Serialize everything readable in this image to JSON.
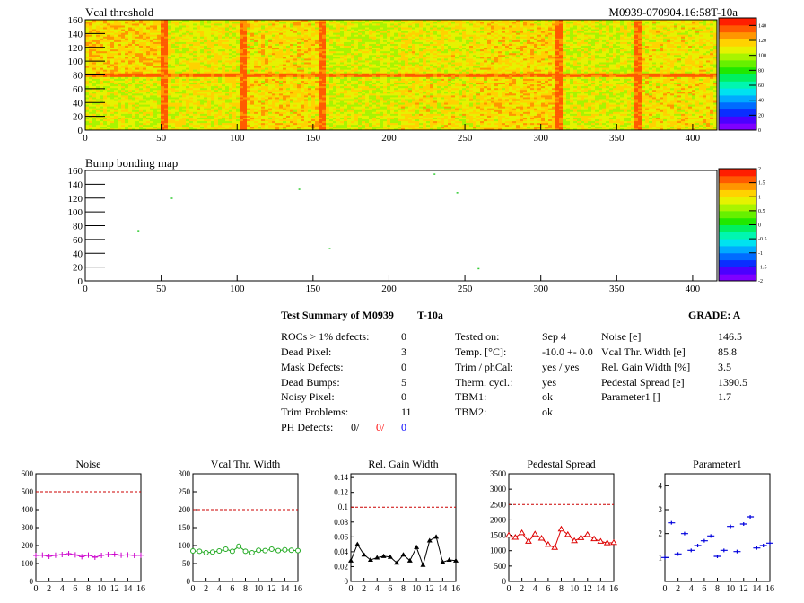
{
  "header": {
    "title": "Vcal threshold",
    "module_id": "M0939-070904.16:58T-10a"
  },
  "colors": {
    "palette": [
      "#7f00ff",
      "#4b00ff",
      "#0a2eff",
      "#006cff",
      "#00aaff",
      "#00e2f0",
      "#00f6b0",
      "#00f060",
      "#20e800",
      "#66f000",
      "#a8f400",
      "#e6f200",
      "#ffd200",
      "#ff9600",
      "#ff5a00",
      "#ff1e00"
    ],
    "noise": "#cc00cc",
    "vcal": "#22aa22",
    "gain": "#000000",
    "pedestal": "#dd0000",
    "parameter": "#0000dd",
    "reference_line": "#cc0000",
    "ph_red": "#ff0000",
    "ph_blue": "#0000ff"
  },
  "chart_data": [
    {
      "type": "heatmap",
      "title": "Vcal threshold",
      "x_ticks": [
        "0",
        "50",
        "100",
        "150",
        "200",
        "250",
        "300",
        "350",
        "400"
      ],
      "y_ticks": [
        "0",
        "20",
        "40",
        "60",
        "80",
        "100",
        "120",
        "140",
        "160"
      ],
      "xlim": [
        0,
        416
      ],
      "ylim": [
        0,
        160
      ],
      "colorbar_ticks": [
        "0",
        "20",
        "40",
        "60",
        "80",
        "100",
        "120",
        "140"
      ],
      "colorbar_range": [
        0,
        150
      ],
      "typical_value": 110,
      "high_columns": [
        52,
        104,
        156,
        312,
        364
      ],
      "high_row": 80
    },
    {
      "type": "scatter",
      "title": "Bump bonding map",
      "x_ticks": [
        "0",
        "50",
        "100",
        "150",
        "200",
        "250",
        "300",
        "350",
        "400"
      ],
      "y_ticks": [
        "0",
        "20",
        "40",
        "60",
        "80",
        "100",
        "120",
        "140",
        "160"
      ],
      "xlim": [
        0,
        416
      ],
      "ylim": [
        0,
        160
      ],
      "colorbar_ticks": [
        "2",
        "1.5",
        "1",
        "0.5",
        "0",
        "-0.5",
        "-1",
        "-1.5",
        "-2"
      ],
      "colorbar_range": [
        -2,
        2
      ],
      "points": [
        [
          35,
          73
        ],
        [
          57,
          120
        ],
        [
          141,
          133
        ],
        [
          161,
          47
        ],
        [
          230,
          155
        ],
        [
          245,
          128
        ],
        [
          259,
          18
        ]
      ]
    },
    {
      "type": "line",
      "title": "Noise",
      "x": [
        0,
        1,
        2,
        3,
        4,
        5,
        6,
        7,
        8,
        9,
        10,
        11,
        12,
        13,
        14,
        15,
        16
      ],
      "x_ticks": [
        "0",
        "2",
        "4",
        "6",
        "8",
        "10",
        "12",
        "14",
        "16"
      ],
      "y_ticks": [
        "0",
        "100",
        "200",
        "300",
        "400",
        "500",
        "600"
      ],
      "xlim": [
        0,
        16
      ],
      "ylim": [
        0,
        600
      ],
      "reference": 500,
      "marker": "plus",
      "values": [
        145,
        147,
        140,
        146,
        150,
        155,
        148,
        138,
        147,
        135,
        145,
        150,
        152,
        146,
        148,
        145,
        146
      ]
    },
    {
      "type": "line",
      "title": "Vcal Thr. Width",
      "x": [
        0,
        1,
        2,
        3,
        4,
        5,
        6,
        7,
        8,
        9,
        10,
        11,
        12,
        13,
        14,
        15,
        16
      ],
      "x_ticks": [
        "0",
        "2",
        "4",
        "6",
        "8",
        "10",
        "12",
        "14",
        "16"
      ],
      "y_ticks": [
        "0",
        "50",
        "100",
        "150",
        "200",
        "250",
        "300"
      ],
      "xlim": [
        0,
        16
      ],
      "ylim": [
        0,
        300
      ],
      "reference": 200,
      "marker": "circle",
      "values": [
        85,
        84,
        80,
        82,
        85,
        90,
        84,
        98,
        84,
        80,
        87,
        86,
        90,
        86,
        88,
        87,
        86
      ]
    },
    {
      "type": "line",
      "title": "Rel. Gain Width",
      "x": [
        0,
        1,
        2,
        3,
        4,
        5,
        6,
        7,
        8,
        9,
        10,
        11,
        12,
        13,
        14,
        15,
        16
      ],
      "x_ticks": [
        "0",
        "2",
        "4",
        "6",
        "8",
        "10",
        "12",
        "14",
        "16"
      ],
      "y_ticks": [
        "0",
        "0.02",
        "0.04",
        "0.06",
        "0.08",
        "0.1",
        "0.12",
        "0.14"
      ],
      "xlim": [
        0,
        16
      ],
      "ylim": [
        0,
        0.145
      ],
      "reference": 0.1,
      "marker": "triangle",
      "values": [
        0.028,
        0.05,
        0.036,
        0.029,
        0.032,
        0.034,
        0.033,
        0.025,
        0.036,
        0.028,
        0.046,
        0.022,
        0.055,
        0.06,
        0.026,
        0.029,
        0.028
      ]
    },
    {
      "type": "line",
      "title": "Pedestal Spread",
      "x": [
        0,
        1,
        2,
        3,
        4,
        5,
        6,
        7,
        8,
        9,
        10,
        11,
        12,
        13,
        14,
        15,
        16
      ],
      "x_ticks": [
        "0",
        "2",
        "4",
        "6",
        "8",
        "10",
        "12",
        "14",
        "16"
      ],
      "y_ticks": [
        "0",
        "500",
        "1000",
        "1500",
        "2000",
        "2500",
        "3000",
        "3500"
      ],
      "xlim": [
        0,
        16
      ],
      "ylim": [
        0,
        3500
      ],
      "reference": 2500,
      "marker": "triangle-open",
      "values": [
        1500,
        1430,
        1580,
        1300,
        1540,
        1400,
        1200,
        1100,
        1700,
        1520,
        1320,
        1420,
        1520,
        1380,
        1300,
        1250,
        1260
      ]
    },
    {
      "type": "scatter",
      "title": "Parameter1",
      "x": [
        0,
        1,
        2,
        3,
        4,
        5,
        6,
        7,
        8,
        9,
        10,
        11,
        12,
        13,
        14,
        15,
        16
      ],
      "x_ticks": [
        "0",
        "2",
        "4",
        "6",
        "8",
        "10",
        "12",
        "14",
        "16"
      ],
      "y_ticks": [
        "1",
        "2",
        "3",
        "4"
      ],
      "xlim": [
        0,
        16
      ],
      "ylim": [
        0,
        4.5
      ],
      "marker": "cross",
      "values": [
        1.0,
        2.45,
        1.15,
        2.0,
        1.3,
        1.5,
        1.7,
        1.9,
        1.05,
        1.3,
        2.3,
        1.25,
        2.4,
        2.7,
        1.4,
        1.5,
        1.6
      ]
    }
  ],
  "summary": {
    "title": "Test Summary of M0939",
    "temp_label": "T-10a",
    "grade": "GRADE:  A",
    "defects": [
      {
        "label": "ROCs > 1% defects:",
        "value": "0"
      },
      {
        "label": "Dead Pixel:",
        "value": "3"
      },
      {
        "label": "Mask Defects:",
        "value": "0"
      },
      {
        "label": "Dead Bumps:",
        "value": "5"
      },
      {
        "label": "Noisy Pixel:",
        "value": "0"
      },
      {
        "label": "Trim Problems:",
        "value": "11"
      }
    ],
    "ph_label": "PH Defects:",
    "ph_values": [
      "0/",
      "0/",
      "0"
    ],
    "tests": [
      {
        "label": "Tested on:",
        "value": "Sep 4"
      },
      {
        "label": "Temp. [°C]:",
        "value": "-10.0 +- 0.0"
      },
      {
        "label": "Trim / phCal:",
        "value": "yes / yes"
      },
      {
        "label": "Therm. cycl.:",
        "value": "yes"
      },
      {
        "label": "TBM1:",
        "value": "ok"
      },
      {
        "label": "TBM2:",
        "value": "ok"
      }
    ],
    "params": [
      {
        "label": "Noise [e]",
        "value": "146.5"
      },
      {
        "label": "Vcal Thr. Width [e]",
        "value": "85.8"
      },
      {
        "label": "Rel. Gain Width [%]",
        "value": "3.5"
      },
      {
        "label": "Pedestal Spread [e]",
        "value": "1390.5"
      },
      {
        "label": "Parameter1 []",
        "value": "1.7"
      }
    ]
  }
}
